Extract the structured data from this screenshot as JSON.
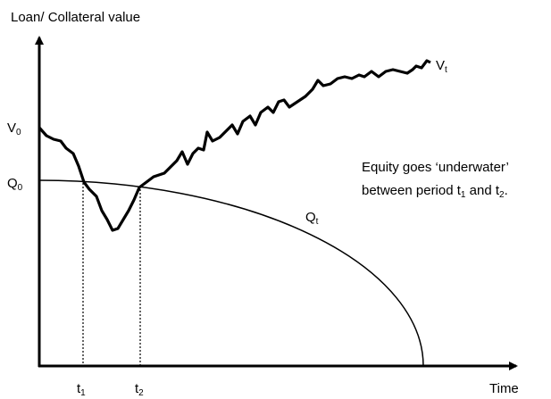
{
  "axis_labels": {
    "y": "Loan/ Collateral value",
    "x": "Time"
  },
  "y_markers": [
    {
      "main": "V",
      "sub": "0"
    },
    {
      "main": "Q",
      "sub": "0"
    }
  ],
  "x_markers": [
    {
      "main": "t",
      "sub": "1"
    },
    {
      "main": "t",
      "sub": "2"
    }
  ],
  "curves": [
    {
      "main": "V",
      "sub": "t"
    },
    {
      "main": "Q",
      "sub": "t"
    }
  ],
  "annotation": {
    "line1": "Equity goes ‘underwater’",
    "line2": [
      "between period t",
      "1",
      " and t",
      "2",
      "."
    ]
  }
}
